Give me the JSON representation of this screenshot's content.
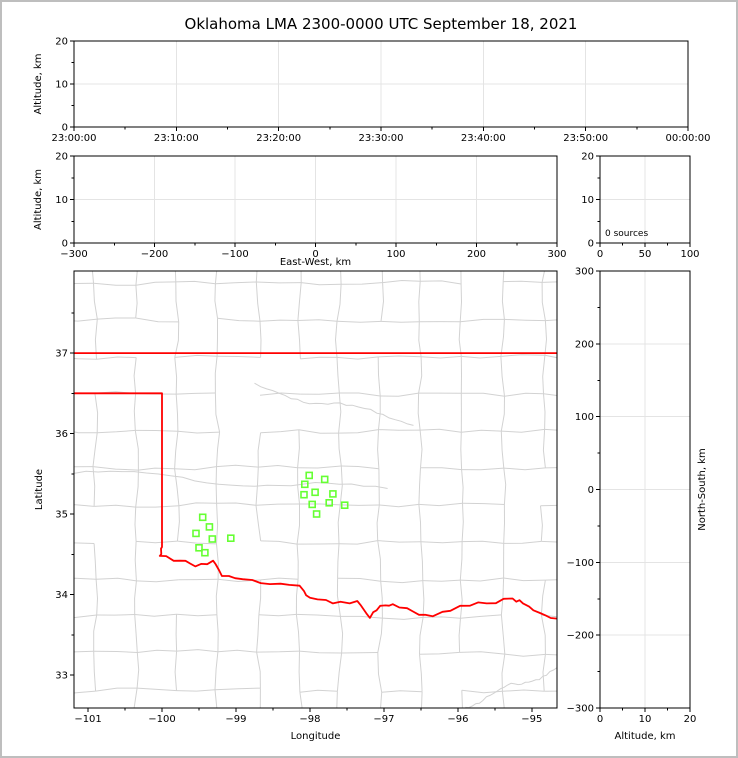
{
  "title": "Oklahoma LMA 2300-0000 UTC September 18, 2021",
  "colors": {
    "state_border": "#ff0000",
    "county_lines": "#d2d2d2",
    "grid_lines": "#e4e4e4",
    "station_marker": "#66ff33",
    "axis": "#000000",
    "frame": "#bebebe",
    "background": "#ffffff"
  },
  "chart_data": [
    {
      "id": "time_height",
      "type": "scatter",
      "ylabel": "Altitude, km",
      "xlim": [
        0,
        6
      ],
      "xticks": {
        "values": [
          0,
          1,
          2,
          3,
          4,
          5,
          6
        ],
        "labels": [
          "23:00:00",
          "23:10:00",
          "23:20:00",
          "23:30:00",
          "23:40:00",
          "23:50:00",
          "00:00:00"
        ]
      },
      "ylim": [
        0,
        20
      ],
      "yticks": {
        "values": [
          0,
          10,
          20
        ],
        "labels": [
          "0",
          "10",
          "20"
        ]
      },
      "points": []
    },
    {
      "id": "ew_height",
      "type": "scatter",
      "xlabel": "East-West, km",
      "ylabel": "Altitude, km",
      "xlim": [
        -300,
        300
      ],
      "xticks": {
        "values": [
          -300,
          -200,
          -100,
          0,
          100,
          200,
          300
        ],
        "labels": [
          "−300",
          "−200",
          "−100",
          "0",
          "100",
          "200",
          "300"
        ]
      },
      "ylim": [
        0,
        20
      ],
      "yticks": {
        "values": [
          0,
          10,
          20
        ],
        "labels": [
          "0",
          "10",
          "20"
        ]
      },
      "points": []
    },
    {
      "id": "altitude_histogram",
      "type": "scatter",
      "annotation": "0 sources",
      "xlim": [
        0,
        100
      ],
      "xticks": {
        "values": [
          0,
          50,
          100
        ],
        "labels": [
          "0",
          "50",
          "100"
        ]
      },
      "ylim": [
        0,
        20
      ],
      "yticks": {
        "values": [
          0,
          10,
          20
        ],
        "labels": [
          "0",
          "10",
          "20"
        ]
      },
      "points": []
    },
    {
      "id": "plan_view",
      "type": "scatter",
      "xlabel": "Longitude",
      "ylabel": "Latitude",
      "xlim": [
        -101.19,
        -94.66
      ],
      "xticks": {
        "values": [
          -101,
          -100,
          -99,
          -98,
          -97,
          -96,
          -95
        ],
        "labels": [
          "−101",
          "−100",
          "−99",
          "−98",
          "−97",
          "−96",
          "−95"
        ]
      },
      "ylim": [
        32.59,
        38.02
      ],
      "yticks": {
        "values": [
          33,
          34,
          35,
          36,
          37
        ],
        "labels": [
          "33",
          "34",
          "35",
          "36",
          "37"
        ]
      },
      "stations": [
        [
          -98.01,
          35.48
        ],
        [
          -97.8,
          35.43
        ],
        [
          -98.07,
          35.37
        ],
        [
          -97.93,
          35.27
        ],
        [
          -98.08,
          35.24
        ],
        [
          -97.69,
          35.25
        ],
        [
          -97.74,
          35.14
        ],
        [
          -97.97,
          35.12
        ],
        [
          -97.53,
          35.11
        ],
        [
          -97.91,
          35.0
        ],
        [
          -99.45,
          34.96
        ],
        [
          -99.36,
          34.84
        ],
        [
          -99.54,
          34.76
        ],
        [
          -99.32,
          34.69
        ],
        [
          -99.07,
          34.7
        ],
        [
          -99.5,
          34.58
        ],
        [
          -99.42,
          34.52
        ]
      ],
      "state_border": {
        "north_latitude": 37.0,
        "panhandle_latitude": 36.5,
        "panhandle_corner_longitude": -100.0,
        "red_river": [
          [
            -100.0,
            34.59
          ],
          [
            -100.03,
            34.48
          ],
          [
            -99.76,
            34.42
          ],
          [
            -99.55,
            34.35
          ],
          [
            -99.31,
            34.42
          ],
          [
            -99.19,
            34.23
          ],
          [
            -98.91,
            34.19
          ],
          [
            -98.54,
            34.13
          ],
          [
            -98.14,
            34.11
          ],
          [
            -98.0,
            33.96
          ],
          [
            -97.69,
            33.89
          ],
          [
            -97.36,
            33.92
          ],
          [
            -97.19,
            33.71
          ],
          [
            -97.05,
            33.86
          ],
          [
            -96.88,
            33.88
          ],
          [
            -96.61,
            33.79
          ],
          [
            -96.34,
            33.73
          ],
          [
            -95.97,
            33.86
          ],
          [
            -95.61,
            33.89
          ],
          [
            -95.26,
            33.95
          ],
          [
            -95.12,
            33.89
          ],
          [
            -94.89,
            33.77
          ],
          [
            -94.65,
            33.7
          ]
        ]
      },
      "county_mesh": {
        "lon_start": -101.45,
        "lat_start": 32.35,
        "cell_lon": 0.55,
        "cell_lat": 0.46,
        "cols": 14,
        "rows": 14,
        "jitter": 0.07,
        "skip_fraction": 0.12,
        "seed": 1234
      },
      "rivers": [
        [
          [
            -101.19,
            35.52
          ],
          [
            -96.95,
            35.3
          ]
        ],
        [
          [
            -98.75,
            36.58
          ],
          [
            -96.6,
            36.14
          ]
        ],
        [
          [
            -95.9,
            32.62
          ],
          [
            -94.66,
            33.08
          ]
        ]
      ]
    },
    {
      "id": "ns_height",
      "type": "scatter",
      "xlabel": "Altitude, km",
      "ylabel": "North-South, km",
      "xlim": [
        0,
        20
      ],
      "xticks": {
        "values": [
          0,
          10,
          20
        ],
        "labels": [
          "0",
          "10",
          "20"
        ]
      },
      "ylim": [
        -300,
        300
      ],
      "yticks": {
        "values": [
          -300,
          -200,
          -100,
          0,
          100,
          200,
          300
        ],
        "labels": [
          "−300",
          "−200",
          "−100",
          "0",
          "100",
          "200",
          "300"
        ]
      },
      "points": []
    }
  ]
}
